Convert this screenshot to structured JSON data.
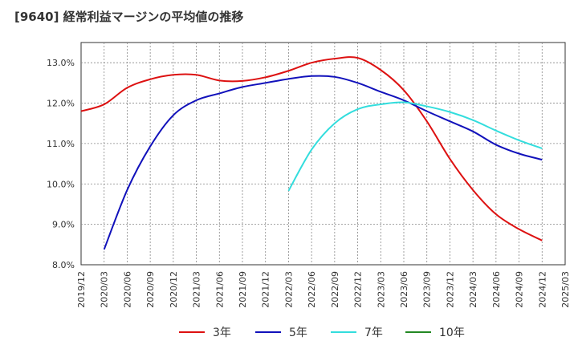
{
  "title": "[9640]  経常利益マージンの平均値の推移",
  "chart_data": {
    "type": "line",
    "title": "[9640]  経常利益マージンの平均値の推移",
    "xlabel": "",
    "ylabel": "",
    "ylim": [
      8.0,
      13.5
    ],
    "yticks": [
      8.0,
      9.0,
      10.0,
      11.0,
      12.0,
      13.0
    ],
    "ytick_labels": [
      "8.0%",
      "9.0%",
      "10.0%",
      "11.0%",
      "12.0%",
      "13.0%"
    ],
    "xticks": [
      "2019/12",
      "2020/03",
      "2020/06",
      "2020/09",
      "2020/12",
      "2021/03",
      "2021/06",
      "2021/09",
      "2021/12",
      "2022/03",
      "2022/06",
      "2022/09",
      "2022/12",
      "2023/03",
      "2023/06",
      "2023/09",
      "2023/12",
      "2024/03",
      "2024/06",
      "2024/09",
      "2024/12",
      "2025/03"
    ],
    "grid": true,
    "legend_position": "bottom",
    "series": [
      {
        "name": "3年",
        "color": "#dd1111",
        "points": [
          [
            "2019/12",
            11.8
          ],
          [
            "2020/03",
            11.97
          ],
          [
            "2020/06",
            12.38
          ],
          [
            "2020/09",
            12.59
          ],
          [
            "2020/12",
            12.7
          ],
          [
            "2021/03",
            12.7
          ],
          [
            "2021/06",
            12.56
          ],
          [
            "2021/09",
            12.55
          ],
          [
            "2021/12",
            12.64
          ],
          [
            "2022/03",
            12.8
          ],
          [
            "2022/06",
            13.0
          ],
          [
            "2022/09",
            13.1
          ],
          [
            "2022/12",
            13.12
          ],
          [
            "2023/03",
            12.82
          ],
          [
            "2023/06",
            12.32
          ],
          [
            "2023/09",
            11.55
          ],
          [
            "2023/12",
            10.62
          ],
          [
            "2024/03",
            9.85
          ],
          [
            "2024/06",
            9.25
          ],
          [
            "2024/09",
            8.88
          ],
          [
            "2024/12",
            8.6
          ]
        ]
      },
      {
        "name": "5年",
        "color": "#1111bb",
        "points": [
          [
            "2020/03",
            8.38
          ],
          [
            "2020/06",
            9.85
          ],
          [
            "2020/09",
            10.93
          ],
          [
            "2020/12",
            11.7
          ],
          [
            "2021/03",
            12.07
          ],
          [
            "2021/06",
            12.24
          ],
          [
            "2021/09",
            12.4
          ],
          [
            "2021/12",
            12.5
          ],
          [
            "2022/03",
            12.6
          ],
          [
            "2022/06",
            12.67
          ],
          [
            "2022/09",
            12.65
          ],
          [
            "2022/12",
            12.5
          ],
          [
            "2023/03",
            12.28
          ],
          [
            "2023/06",
            12.07
          ],
          [
            "2023/09",
            11.8
          ],
          [
            "2023/12",
            11.55
          ],
          [
            "2024/03",
            11.3
          ],
          [
            "2024/06",
            10.97
          ],
          [
            "2024/09",
            10.75
          ],
          [
            "2024/12",
            10.6
          ]
        ]
      },
      {
        "name": "7年",
        "color": "#33dddd",
        "points": [
          [
            "2022/03",
            9.83
          ],
          [
            "2022/06",
            10.85
          ],
          [
            "2022/09",
            11.5
          ],
          [
            "2022/12",
            11.85
          ],
          [
            "2023/03",
            11.97
          ],
          [
            "2023/06",
            12.02
          ],
          [
            "2023/09",
            11.92
          ],
          [
            "2023/12",
            11.78
          ],
          [
            "2024/03",
            11.58
          ],
          [
            "2024/06",
            11.32
          ],
          [
            "2024/09",
            11.08
          ],
          [
            "2024/12",
            10.88
          ]
        ]
      },
      {
        "name": "10年",
        "color": "#228822",
        "points": []
      }
    ]
  }
}
